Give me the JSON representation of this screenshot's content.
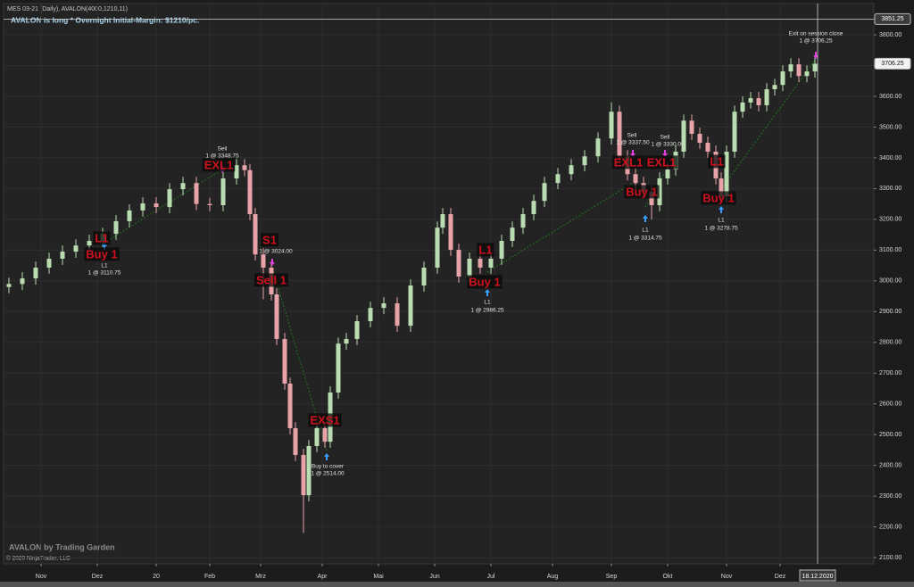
{
  "header": "MES 03-21 (Daily), AVALON(4000,1210,11)",
  "status": "AVALON is long * Overnight Initial-Margin: $1210/pc.",
  "branding": "AVALON by Trading Garden",
  "copyright": "© 2020 NinjaTrader, LLC",
  "signals": [
    "L1",
    "Buy 1",
    "EXL1",
    "S1",
    "Sell 1",
    "EXS1",
    "L1",
    "Buy 1",
    "EXL1",
    "EXL1",
    "Buy 1",
    "L1",
    "Buy 1"
  ],
  "notes": [
    "L1",
    "1 @ 3110.75",
    "Sell",
    "1 @ 3348.75",
    "1 @ 3024.00",
    "Buy to cover",
    "1 @ 2514.00",
    "L1",
    "1 @ 2986.25",
    "Sell",
    "1 @ 3337.50",
    "Sell",
    "1 @ 3330.00",
    "L1",
    "1 @ 3314.75",
    "L1",
    "1 @ 3278.75",
    "Exit on session close",
    "1 @ 3706.25"
  ],
  "chart_data": {
    "type": "candlestick",
    "x": [
      0,
      5,
      10,
      15,
      20,
      25,
      30,
      35,
      40,
      45,
      50,
      55,
      60,
      65,
      70,
      75,
      80,
      85,
      88,
      90,
      92,
      95,
      98,
      100,
      103,
      105,
      107,
      110,
      112,
      115,
      118,
      120,
      123,
      126,
      130,
      135,
      140,
      145,
      150,
      155,
      160,
      162,
      165,
      168,
      172,
      176,
      180,
      184,
      188,
      192,
      196,
      200,
      205,
      210,
      215,
      220,
      225,
      228,
      231,
      234,
      237,
      240,
      243,
      246,
      249,
      252,
      255,
      258,
      261,
      264,
      266,
      268,
      271,
      274,
      277,
      280,
      283,
      286,
      289,
      292,
      295,
      298,
      301
    ],
    "open": [
      2980,
      2990,
      3008,
      3043,
      3072,
      3095,
      3115,
      3130,
      3153,
      3194,
      3229,
      3252,
      3240,
      3298,
      3318,
      3250,
      3246,
      3333,
      3376,
      3360,
      3217,
      3086,
      3043,
      2956,
      2811,
      2666,
      2521,
      2434,
      2303,
      2463,
      2521,
      2477,
      2637,
      2796,
      2811,
      2869,
      2912,
      2927,
      2854,
      2985,
      3043,
      3173,
      3217,
      3101,
      3014,
      3072,
      3043,
      3072,
      3130,
      3173,
      3217,
      3260,
      3318,
      3347,
      3376,
      3405,
      3463,
      3550,
      3405,
      3347,
      3318,
      3289,
      3246,
      3333,
      3362,
      3420,
      3521,
      3478,
      3449,
      3420,
      3333,
      3275,
      3420,
      3550,
      3580,
      3594,
      3571,
      3623,
      3637,
      3681,
      3704,
      3666,
      3681
    ],
    "high": [
      3010,
      3028,
      3063,
      3092,
      3115,
      3135,
      3150,
      3173,
      3214,
      3249,
      3272,
      3272,
      3318,
      3338,
      3338,
      3270,
      3353,
      3396,
      3396,
      3380,
      3237,
      3106,
      3063,
      2976,
      2831,
      2686,
      2541,
      2454,
      2483,
      2541,
      2541,
      2657,
      2816,
      2831,
      2889,
      2932,
      2947,
      2947,
      3005,
      3063,
      3193,
      3237,
      3237,
      3121,
      3092,
      3092,
      3092,
      3150,
      3193,
      3237,
      3280,
      3338,
      3367,
      3396,
      3425,
      3483,
      3580,
      3570,
      3425,
      3367,
      3338,
      3309,
      3353,
      3382,
      3440,
      3541,
      3541,
      3498,
      3469,
      3440,
      3353,
      3440,
      3570,
      3600,
      3614,
      3614,
      3643,
      3657,
      3701,
      3724,
      3724,
      3701,
      3726
    ],
    "low": [
      2960,
      2970,
      2988,
      3023,
      3052,
      3075,
      3095,
      3110,
      3133,
      3174,
      3209,
      3220,
      3220,
      3278,
      3230,
      3226,
      3226,
      3313,
      3340,
      3197,
      3066,
      2940,
      2936,
      2791,
      2646,
      2501,
      2414,
      2180,
      2283,
      2443,
      2457,
      2457,
      2617,
      2776,
      2791,
      2849,
      2892,
      2834,
      2834,
      2965,
      3023,
      3153,
      3081,
      2994,
      2994,
      3023,
      3023,
      3052,
      3110,
      3153,
      3197,
      3240,
      3298,
      3327,
      3356,
      3385,
      3443,
      3385,
      3327,
      3298,
      3269,
      3200,
      3226,
      3313,
      3342,
      3400,
      3458,
      3429,
      3400,
      3313,
      3255,
      3255,
      3400,
      3530,
      3560,
      3551,
      3551,
      3603,
      3617,
      3661,
      3646,
      3646,
      3661
    ],
    "close": [
      2990,
      3008,
      3043,
      3072,
      3095,
      3115,
      3130,
      3153,
      3194,
      3229,
      3252,
      3240,
      3298,
      3318,
      3250,
      3246,
      3333,
      3376,
      3360,
      3217,
      3086,
      3043,
      2956,
      2811,
      2666,
      2521,
      2434,
      2303,
      2463,
      2521,
      2477,
      2637,
      2796,
      2811,
      2869,
      2912,
      2927,
      2854,
      2985,
      3043,
      3173,
      3217,
      3101,
      3014,
      3072,
      3043,
      3072,
      3130,
      3173,
      3217,
      3260,
      3318,
      3347,
      3376,
      3405,
      3463,
      3550,
      3405,
      3347,
      3318,
      3289,
      3246,
      3333,
      3362,
      3420,
      3521,
      3478,
      3449,
      3420,
      3333,
      3275,
      3420,
      3550,
      3580,
      3594,
      3571,
      3623,
      3637,
      3681,
      3704,
      3666,
      3681,
      3706
    ],
    "up_color": "#b9dcb0",
    "down_color": "#e8a3a8",
    "xlim": [
      -2,
      323
    ],
    "ylim": [
      2080,
      3861
    ],
    "xticks": [
      {
        "value": 12,
        "label": "Nov"
      },
      {
        "value": 33,
        "label": "Dez"
      },
      {
        "value": 55,
        "label": "20"
      },
      {
        "value": 75,
        "label": "Feb"
      },
      {
        "value": 94,
        "label": "Mrz"
      },
      {
        "value": 117,
        "label": "Apr"
      },
      {
        "value": 138,
        "label": "Mai"
      },
      {
        "value": 159,
        "label": "Jun"
      },
      {
        "value": 180,
        "label": "Jul"
      },
      {
        "value": 203,
        "label": "Aug"
      },
      {
        "value": 225,
        "label": "Sep"
      },
      {
        "value": 246,
        "label": "Okt"
      },
      {
        "value": 268,
        "label": "Nov"
      },
      {
        "value": 288,
        "label": "Dez"
      }
    ],
    "yticks": [
      {
        "value": 2100,
        "label": "2100.00"
      },
      {
        "value": 2200,
        "label": "2200.00"
      },
      {
        "value": 2300,
        "label": "2300.00"
      },
      {
        "value": 2400,
        "label": "2400.00"
      },
      {
        "value": 2500,
        "label": "2500.00"
      },
      {
        "value": 2600,
        "label": "2600.00"
      },
      {
        "value": 2700,
        "label": "2700.00"
      },
      {
        "value": 2800,
        "label": "2800.00"
      },
      {
        "value": 2900,
        "label": "2900.00"
      },
      {
        "value": 3000,
        "label": "3000.00"
      },
      {
        "value": 3100,
        "label": "3100.00"
      },
      {
        "value": 3200,
        "label": "3200.00"
      },
      {
        "value": 3300,
        "label": "3300.00"
      },
      {
        "value": 3400,
        "label": "3400.00"
      },
      {
        "value": 3500,
        "label": "3500.00"
      },
      {
        "value": 3600,
        "label": "3600.00"
      },
      {
        "value": 3700,
        "label": "3700.00"
      },
      {
        "value": 3800,
        "label": "3800.00"
      }
    ],
    "grid": true,
    "cursor": {
      "x": 302,
      "label": "18.12.2020",
      "price": {
        "value": 3851.25,
        "label": "3851.25"
      }
    },
    "last_price": {
      "value": 3706.25,
      "label": "3706.25"
    }
  }
}
